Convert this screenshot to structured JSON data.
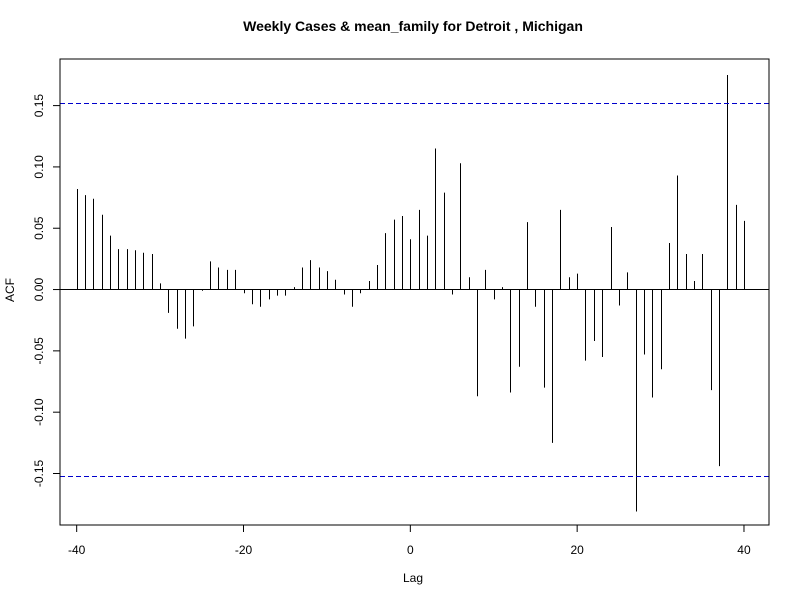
{
  "chart_data": {
    "type": "bar",
    "title": "Weekly Cases & mean_family for Detroit , Michigan",
    "xlabel": "Lag",
    "ylabel": "ACF",
    "xlim": [
      -42,
      43
    ],
    "ylim": [
      -0.192,
      0.188
    ],
    "x_ticks": [
      -40,
      -20,
      0,
      20,
      40
    ],
    "x_tick_labels": [
      "-40",
      "-20",
      "0",
      "20",
      "40"
    ],
    "y_ticks": [
      -0.15,
      -0.1,
      -0.05,
      0.0,
      0.05,
      0.1,
      0.15
    ],
    "y_tick_labels": [
      "-0.15",
      "-0.10",
      "-0.05",
      "0.00",
      "0.05",
      "0.10",
      "0.15"
    ],
    "confidence_bound": 0.152,
    "colors": {
      "bars": "#000000",
      "confidence_lines": "#0000cc",
      "zero_line": "#000000"
    },
    "x": [
      -40,
      -39,
      -38,
      -37,
      -36,
      -35,
      -34,
      -33,
      -32,
      -31,
      -30,
      -29,
      -28,
      -27,
      -26,
      -25,
      -24,
      -23,
      -22,
      -21,
      -20,
      -19,
      -18,
      -17,
      -16,
      -15,
      -14,
      -13,
      -12,
      -11,
      -10,
      -9,
      -8,
      -7,
      -6,
      -5,
      -4,
      -3,
      -2,
      -1,
      0,
      1,
      2,
      3,
      4,
      5,
      6,
      7,
      8,
      9,
      10,
      11,
      12,
      13,
      14,
      15,
      16,
      17,
      18,
      19,
      20,
      21,
      22,
      23,
      24,
      25,
      26,
      27,
      28,
      29,
      30,
      31,
      32,
      33,
      34,
      35,
      36,
      37,
      38,
      39,
      40
    ],
    "values": [
      0.082,
      0.077,
      0.074,
      0.061,
      0.044,
      0.033,
      0.033,
      0.032,
      0.03,
      0.029,
      0.005,
      -0.019,
      -0.032,
      -0.04,
      -0.03,
      -0.001,
      0.023,
      0.018,
      0.016,
      0.016,
      -0.003,
      -0.012,
      -0.014,
      -0.008,
      -0.005,
      -0.005,
      0.002,
      0.018,
      0.024,
      0.018,
      0.015,
      0.008,
      -0.004,
      -0.014,
      -0.003,
      0.007,
      0.02,
      0.046,
      0.057,
      0.06,
      0.041,
      0.065,
      0.044,
      0.115,
      0.079,
      -0.004,
      0.103,
      0.01,
      -0.087,
      0.016,
      -0.008,
      0.002,
      -0.084,
      -0.063,
      0.055,
      -0.014,
      -0.08,
      -0.125,
      0.065,
      0.01,
      0.013,
      -0.058,
      -0.042,
      -0.055,
      0.051,
      -0.013,
      0.014,
      -0.181,
      -0.053,
      -0.088,
      -0.065,
      0.038,
      0.093,
      0.029,
      0.007,
      0.029,
      -0.082,
      -0.144,
      0.175,
      0.069,
      0.056
    ]
  }
}
